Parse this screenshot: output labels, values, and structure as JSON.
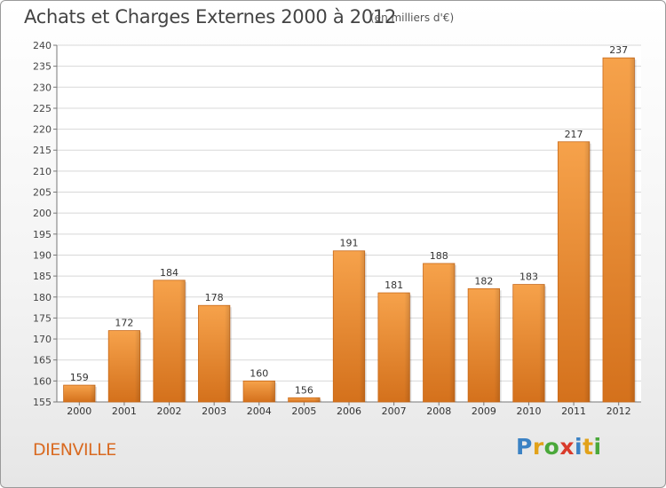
{
  "chart_data": {
    "type": "bar",
    "title": "Achats et Charges Externes 2000 à 2012",
    "subtitle": "(en milliers d'€)",
    "categories": [
      "2000",
      "2001",
      "2002",
      "2003",
      "2004",
      "2005",
      "2006",
      "2007",
      "2008",
      "2009",
      "2010",
      "2011",
      "2012"
    ],
    "values": [
      159,
      172,
      184,
      178,
      160,
      156,
      191,
      181,
      188,
      182,
      183,
      217,
      237
    ],
    "ylim": [
      155,
      240
    ],
    "yticks": [
      155,
      160,
      165,
      170,
      175,
      180,
      185,
      190,
      195,
      200,
      205,
      210,
      215,
      220,
      225,
      230,
      235,
      240
    ],
    "grid": true,
    "bar_color": "#f0923a",
    "bar_color_dark": "#d4711c"
  },
  "footer": {
    "town": "DIENVILLE",
    "brand_letters": [
      "P",
      "r",
      "o",
      "x",
      "i",
      "t",
      "i"
    ],
    "brand_colors": [
      "#3b82c4",
      "#e2a21a",
      "#4aa83a",
      "#d93b2b",
      "#3b82c4",
      "#e2a21a",
      "#4aa83a"
    ]
  }
}
